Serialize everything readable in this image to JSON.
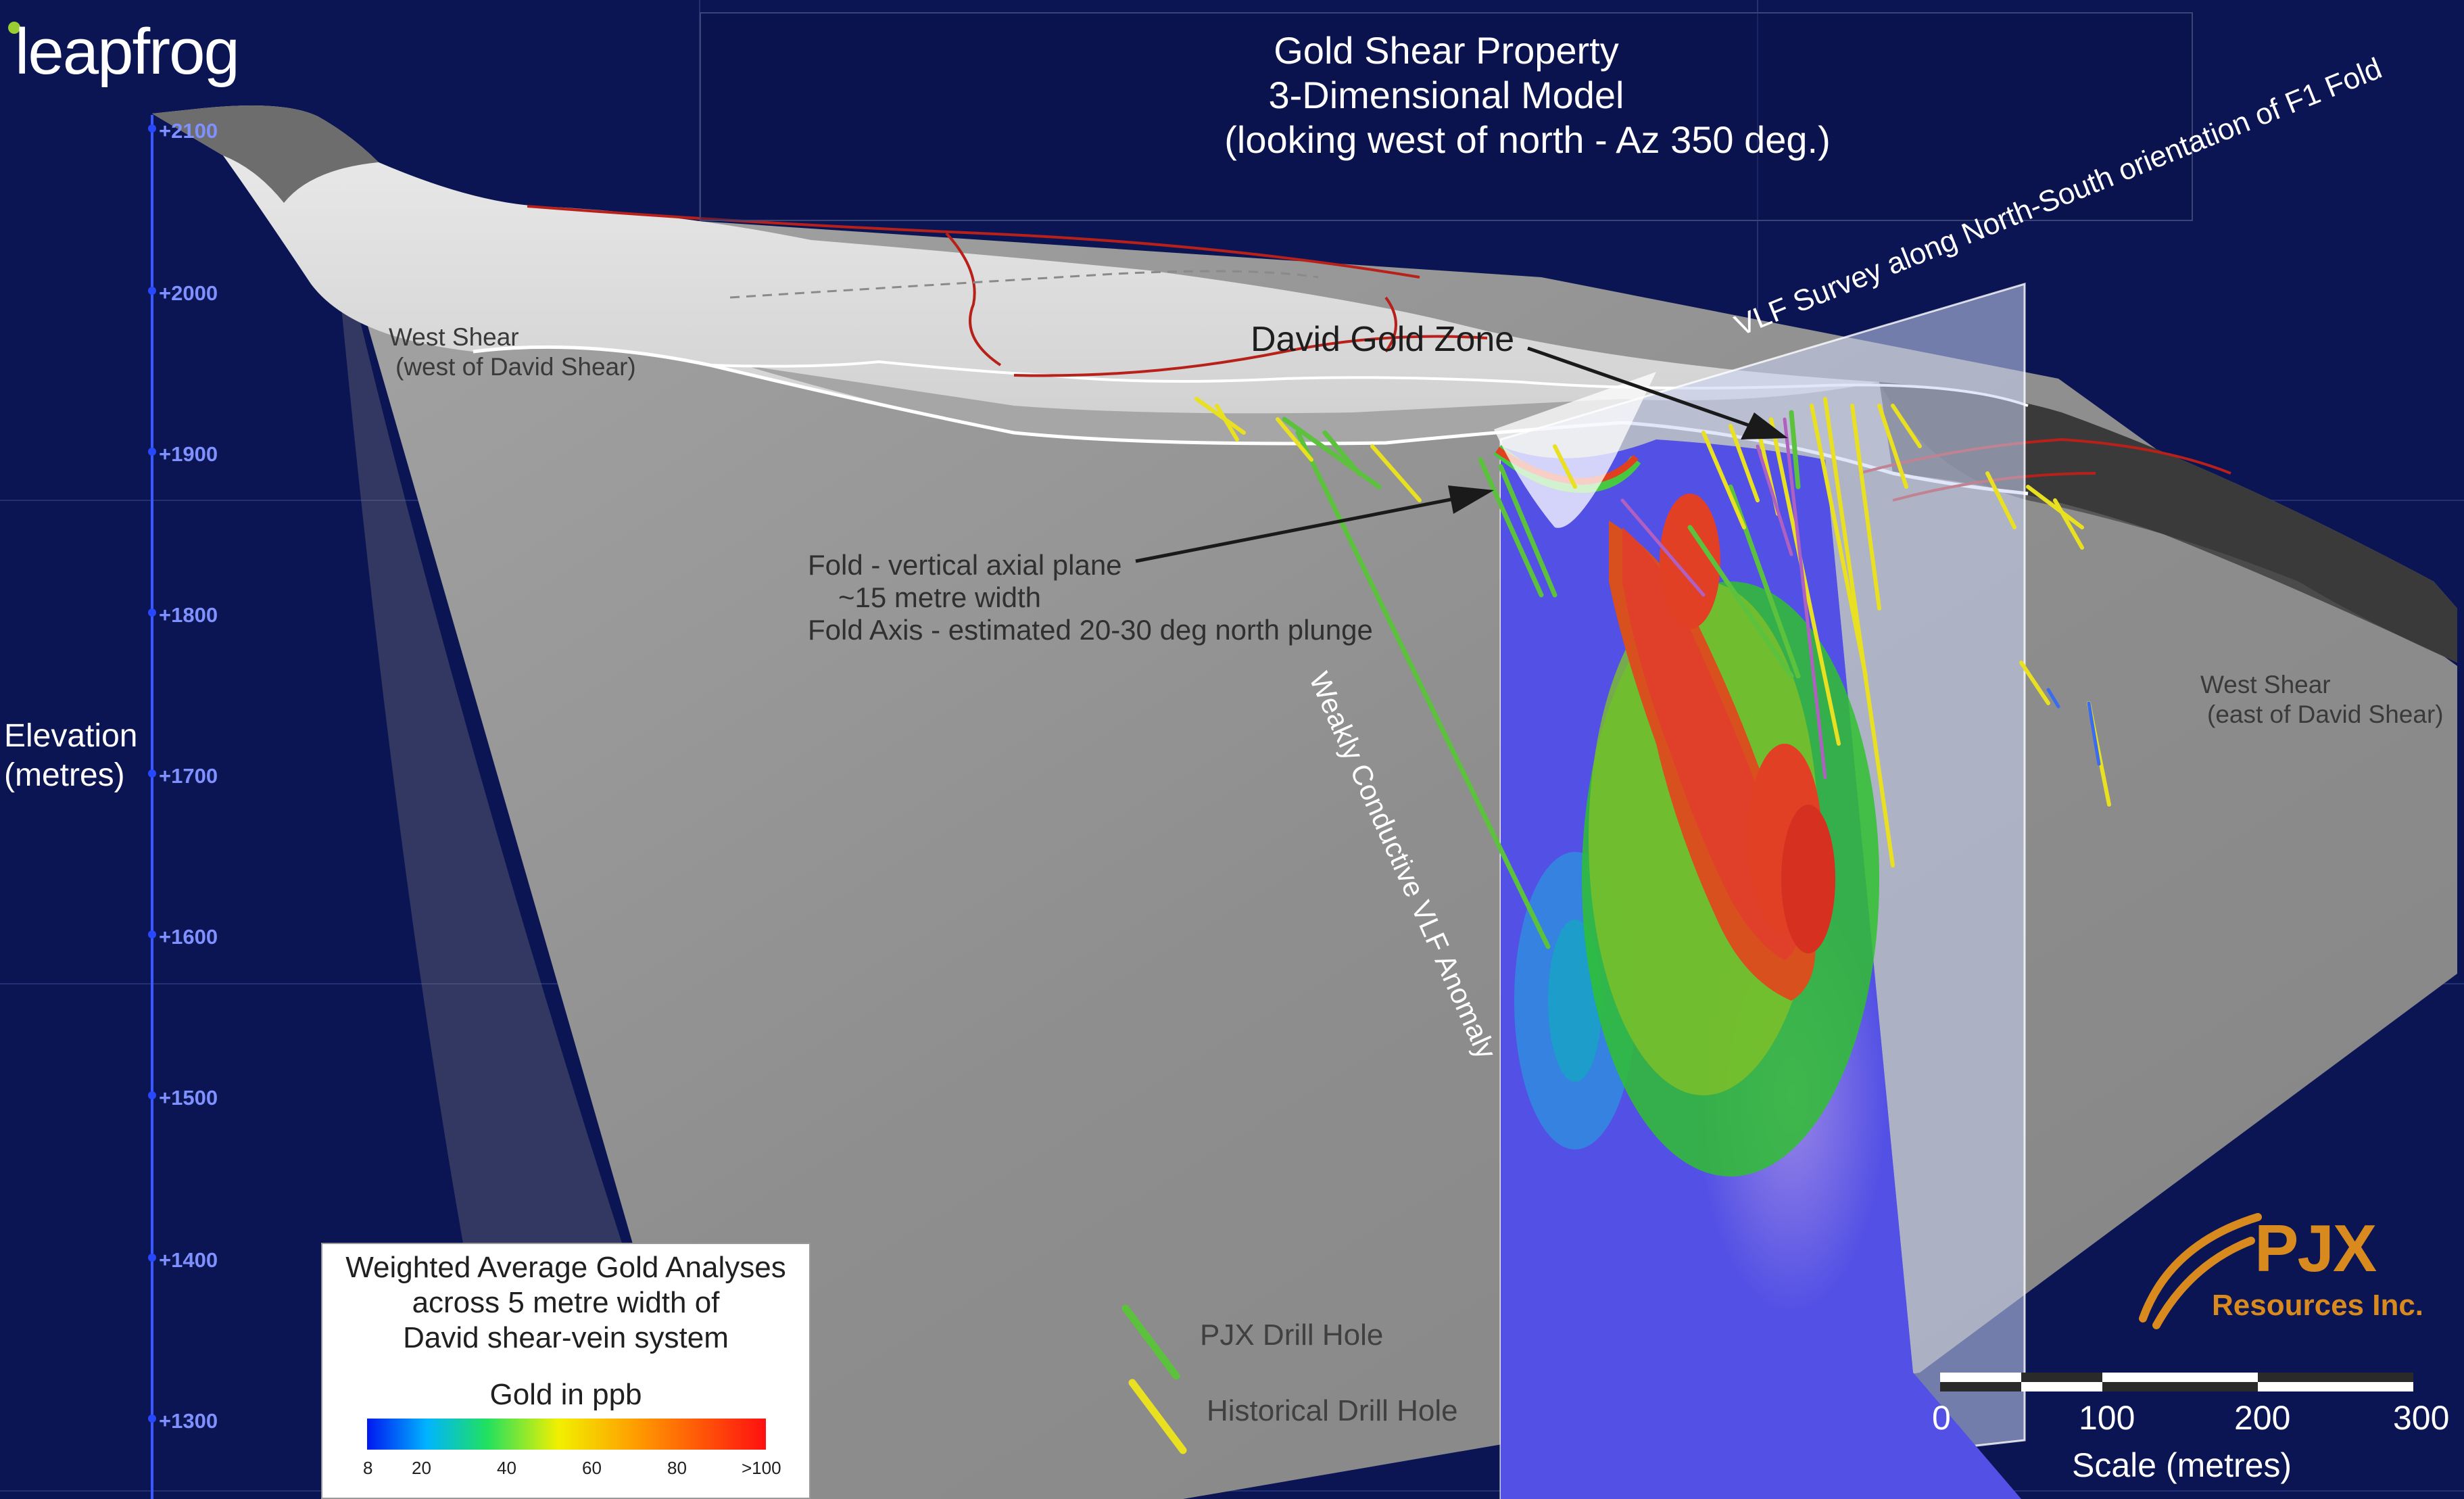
{
  "logo": {
    "text": "leapfrog"
  },
  "title": {
    "line1": "Gold Shear Property",
    "line2": "3-Dimensional Model",
    "line3": "(looking west of north - Az 350 deg.)"
  },
  "elevation_axis": {
    "title_line1": "Elevation",
    "title_line2": "(metres)",
    "ticks": [
      "+2100",
      "+2000",
      "+1900",
      "+1800",
      "+1700",
      "+1600",
      "+1500",
      "+1400",
      "+1300"
    ]
  },
  "labels": {
    "west_shear_left_1": "West Shear",
    "west_shear_left_2": "(west of David Shear)",
    "david_gold_zone": "David Gold Zone",
    "fold_1": "Fold - vertical axial plane",
    "fold_2": "~15 metre width",
    "fold_3": "Fold Axis - estimated 20-30 deg north plunge",
    "vlf_anomaly": "Weakly Conductive VLF Anomaly",
    "vlf_survey": "VLF Survey along North-South orientation of F1 Fold",
    "west_shear_right_1": "West Shear",
    "west_shear_right_2": "(east of David Shear)"
  },
  "legend": {
    "title_1": "Weighted Average Gold Analyses",
    "title_2": "across 5 metre width of",
    "title_3": "David shear-vein system",
    "scale_title": "Gold in ppb",
    "ticks": [
      "8",
      "20",
      "40",
      "60",
      "80",
      ">100"
    ]
  },
  "drill_key": {
    "pjx": "PJX Drill Hole",
    "historical": "Historical Drill Hole",
    "pjx_color": "#5cc13c",
    "historical_color": "#e8e020"
  },
  "scale_bar": {
    "ticks": [
      "0",
      "100",
      "200",
      "300"
    ],
    "label": "Scale (metres)"
  },
  "company": {
    "name": "PJX",
    "sub": "Resources Inc."
  },
  "colors": {
    "background": "#0b1553",
    "surface": "#8c8c8c",
    "accent": "#d98a1e"
  }
}
